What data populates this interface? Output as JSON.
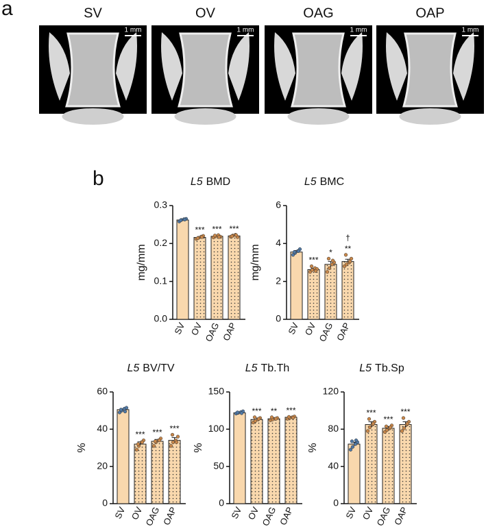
{
  "panel_a": {
    "label": "a",
    "images": [
      {
        "title": "SV",
        "scale": "1 mm"
      },
      {
        "title": "OV",
        "scale": "1 mm"
      },
      {
        "title": "OAG",
        "scale": "1 mm"
      },
      {
        "title": "OAP",
        "scale": "1 mm"
      }
    ]
  },
  "panel_b": {
    "label": "b"
  },
  "chart_data": [
    {
      "type": "bar",
      "title_prefix": "L5",
      "title": "BMD",
      "y_label": "mg/mm",
      "categories": [
        "SV",
        "OV",
        "OAG",
        "OAP"
      ],
      "values": [
        0.262,
        0.216,
        0.219,
        0.22
      ],
      "errors": [
        0.002,
        0.002,
        0.002,
        0.002
      ],
      "points": [
        [
          0.258,
          0.262,
          0.264,
          0.265,
          0.261,
          0.263
        ],
        [
          0.212,
          0.215,
          0.218,
          0.22,
          0.214,
          0.217
        ],
        [
          0.216,
          0.219,
          0.222,
          0.218,
          0.221,
          0.217
        ],
        [
          0.218,
          0.221,
          0.223,
          0.217,
          0.219,
          0.222
        ]
      ],
      "significance": [
        null,
        "***",
        "***",
        "***"
      ],
      "significance_vs_ov": [
        null,
        null,
        null,
        null
      ],
      "ylim": [
        0,
        0.3
      ],
      "yticks": [
        {
          "value": 0,
          "label": "0.0"
        },
        0.1,
        0.2,
        0.3
      ],
      "bar_color": "#f9d8ad",
      "patterned": [
        false,
        true,
        true,
        true
      ],
      "point_colors": [
        "#5079a6",
        "#c8874a",
        "#c8874a",
        "#c8874a"
      ]
    },
    {
      "type": "bar",
      "title_prefix": "L5",
      "title": "BMC",
      "y_label": "mg/mm",
      "categories": [
        "SV",
        "OV",
        "OAG",
        "OAP"
      ],
      "values": [
        3.55,
        2.62,
        2.9,
        3.05
      ],
      "errors": [
        0.08,
        0.07,
        0.15,
        0.12
      ],
      "points": [
        [
          3.4,
          3.5,
          3.6,
          3.7,
          3.55,
          3.6
        ],
        [
          2.5,
          2.6,
          2.7,
          2.65,
          2.8,
          2.55
        ],
        [
          2.5,
          2.7,
          2.9,
          3.0,
          3.2,
          3.1
        ],
        [
          2.8,
          2.9,
          3.0,
          3.2,
          3.4,
          3.05
        ]
      ],
      "significance": [
        null,
        "***",
        "*",
        "**"
      ],
      "significance_vs_ov": [
        null,
        null,
        null,
        "†"
      ],
      "ylim": [
        0,
        6
      ],
      "yticks": [
        0,
        2,
        4,
        6
      ],
      "bar_color": "#f9d8ad",
      "patterned": [
        false,
        true,
        true,
        true
      ],
      "point_colors": [
        "#5079a6",
        "#c8874a",
        "#c8874a",
        "#c8874a"
      ]
    },
    {
      "type": "bar",
      "title_prefix": "L5",
      "title": "BV/TV",
      "y_label": "%",
      "categories": [
        "SV",
        "OV",
        "OAG",
        "OAP"
      ],
      "values": [
        50.5,
        32,
        33.5,
        34
      ],
      "errors": [
        0.5,
        1.2,
        1.0,
        1.5
      ],
      "points": [
        [
          49,
          50,
          51,
          51.5,
          50.5,
          49.5
        ],
        [
          29,
          31,
          33,
          34,
          32,
          33
        ],
        [
          31,
          33,
          34,
          35,
          33.5,
          34
        ],
        [
          31,
          33,
          34,
          36,
          37,
          33
        ]
      ],
      "significance": [
        null,
        "***",
        "***",
        "***"
      ],
      "significance_vs_ov": [
        null,
        null,
        null,
        null
      ],
      "ylim": [
        0,
        60
      ],
      "yticks": [
        0,
        20,
        40,
        60
      ],
      "bar_color": "#f9d8ad",
      "patterned": [
        false,
        true,
        true,
        true
      ],
      "point_colors": [
        "#5079a6",
        "#c8874a",
        "#c8874a",
        "#c8874a"
      ]
    },
    {
      "type": "bar",
      "title_prefix": "L5",
      "title": "Tb.Th",
      "y_label": "%",
      "categories": [
        "SV",
        "OV",
        "OAG",
        "OAP"
      ],
      "values": [
        122,
        113,
        114,
        116
      ],
      "errors": [
        1,
        2,
        1.5,
        1
      ],
      "points": [
        [
          121,
          122,
          123,
          124,
          122.5,
          121.5
        ],
        [
          109,
          111,
          113,
          115,
          116,
          114
        ],
        [
          112,
          113,
          114,
          115,
          116,
          114
        ],
        [
          114,
          115,
          116,
          117,
          116.5,
          115.5
        ]
      ],
      "significance": [
        null,
        "***",
        "**",
        "***"
      ],
      "significance_vs_ov": [
        null,
        null,
        null,
        null
      ],
      "ylim": [
        0,
        150
      ],
      "yticks": [
        0,
        50,
        100,
        150
      ],
      "bar_color": "#f9d8ad",
      "patterned": [
        false,
        true,
        true,
        true
      ],
      "point_colors": [
        "#5079a6",
        "#c8874a",
        "#c8874a",
        "#c8874a"
      ]
    },
    {
      "type": "bar",
      "title_prefix": "L5",
      "title": "Tb.Sp",
      "y_label": "%",
      "categories": [
        "SV",
        "OV",
        "OAG",
        "OAP"
      ],
      "values": [
        64,
        85,
        81,
        85
      ],
      "errors": [
        2,
        3,
        2,
        3
      ],
      "points": [
        [
          58,
          61,
          64,
          66,
          67,
          68
        ],
        [
          78,
          82,
          85,
          88,
          91,
          86
        ],
        [
          77,
          79,
          81,
          84,
          83,
          82
        ],
        [
          78,
          81,
          85,
          88,
          92,
          86
        ]
      ],
      "significance": [
        null,
        "***",
        "***",
        "***"
      ],
      "significance_vs_ov": [
        null,
        null,
        null,
        null
      ],
      "ylim": [
        0,
        120
      ],
      "yticks": [
        0,
        40,
        80,
        120
      ],
      "bar_color": "#f9d8ad",
      "patterned": [
        false,
        true,
        true,
        true
      ],
      "point_colors": [
        "#5079a6",
        "#c8874a",
        "#c8874a",
        "#c8874a"
      ]
    }
  ]
}
